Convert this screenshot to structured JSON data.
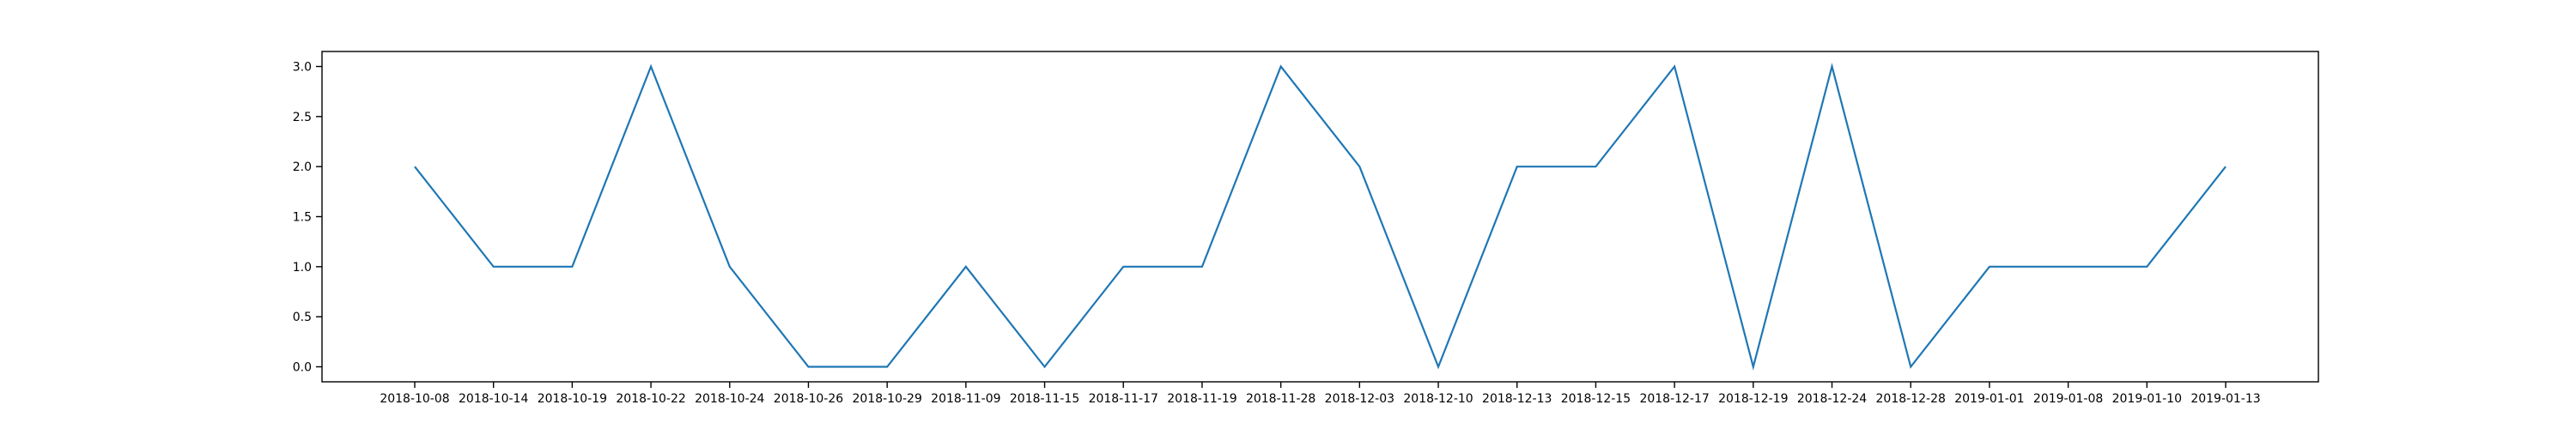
{
  "chart_data": {
    "type": "line",
    "title": "",
    "xlabel": "",
    "ylabel": "",
    "x": [
      "2018-10-08",
      "2018-10-14",
      "2018-10-19",
      "2018-10-22",
      "2018-10-24",
      "2018-10-26",
      "2018-10-29",
      "2018-11-09",
      "2018-11-15",
      "2018-11-17",
      "2018-11-19",
      "2018-11-28",
      "2018-12-03",
      "2018-12-10",
      "2018-12-13",
      "2018-12-15",
      "2018-12-17",
      "2018-12-19",
      "2018-12-24",
      "2018-12-28",
      "2019-01-01",
      "2019-01-08",
      "2019-01-10",
      "2019-01-13"
    ],
    "series": [
      {
        "values": [
          2,
          1,
          1,
          3,
          1,
          0,
          0,
          1,
          0,
          1,
          1,
          3,
          2,
          0,
          2,
          2,
          3,
          0,
          3,
          0,
          1,
          1,
          1,
          2
        ]
      }
    ],
    "ylim": [
      -0.15,
      3.15
    ],
    "yticks": [
      "0.0",
      "0.5",
      "1.0",
      "1.5",
      "2.0",
      "2.5",
      "3.0"
    ],
    "grid": false,
    "legend": "none",
    "colors": {
      "line": "#1f77b4",
      "axes": "#000000"
    }
  }
}
